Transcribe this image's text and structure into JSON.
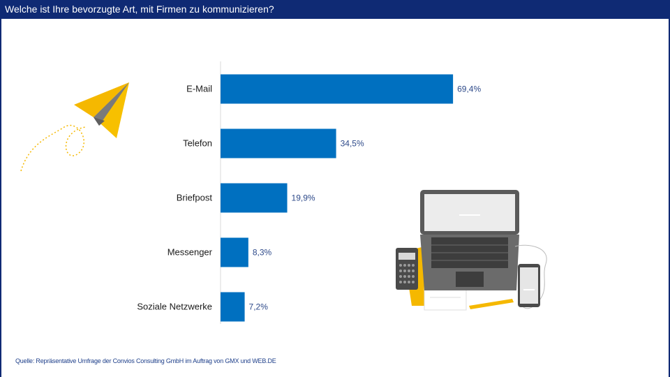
{
  "header": {
    "title": "Welche ist Ihre bevorzugte Art, mit Firmen zu kommunizieren?"
  },
  "footer": {
    "source": "Quelle: Repräsentative Umfrage der Convios Consulting GmbH im Auftrag von GMX und WEB.DE"
  },
  "colors": {
    "header_bg": "#0f2a74",
    "bar": "#0070c0",
    "value_text": "#2e4a8a",
    "accent_yellow": "#f5b800"
  },
  "illustrations": {
    "left": "paper-plane-icon",
    "right": "laptop-calculator-phone-icon"
  },
  "chart_data": {
    "type": "bar",
    "orientation": "horizontal",
    "categories": [
      "E-Mail",
      "Telefon",
      "Briefpost",
      "Messenger",
      "Soziale Netzwerke"
    ],
    "values": [
      69.4,
      34.5,
      19.9,
      8.3,
      7.2
    ],
    "value_labels": [
      "69,4%",
      "34,5%",
      "19,9%",
      "8,3%",
      "7,2%"
    ],
    "xlim": [
      0,
      100
    ],
    "grid": false,
    "legend": "none"
  }
}
